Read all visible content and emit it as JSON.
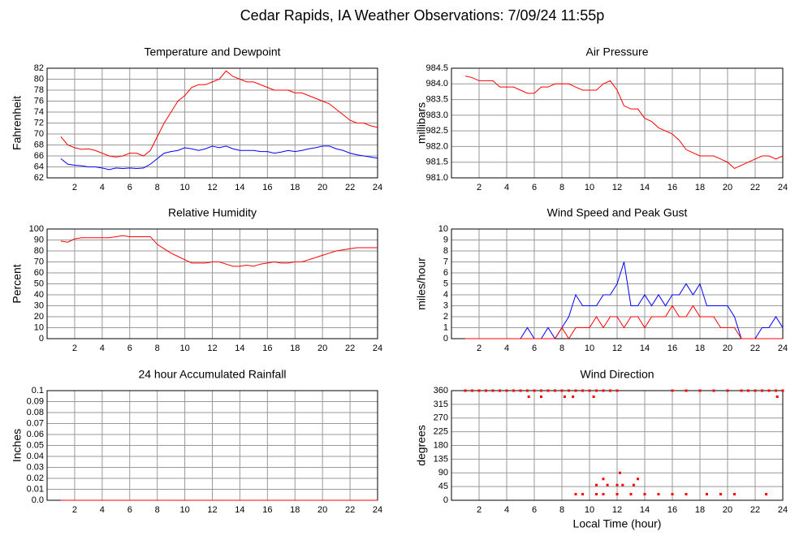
{
  "title": "Cedar Rapids, IA Weather Observations: 7/09/24 11:55p",
  "xlabel": "Local Time (hour)",
  "chart_data": [
    {
      "type": "line",
      "title": "Temperature and Dewpoint",
      "ylabel": "Fahrenheit",
      "xlim": [
        0,
        24
      ],
      "xticks": [
        2,
        4,
        6,
        8,
        10,
        12,
        14,
        16,
        18,
        20,
        22,
        24
      ],
      "ylim": [
        62,
        82
      ],
      "yticks": [
        62,
        64,
        66,
        68,
        70,
        72,
        74,
        76,
        78,
        80,
        82
      ],
      "grid": true,
      "x": [
        1,
        1.5,
        2,
        2.5,
        3,
        3.5,
        4,
        4.5,
        5,
        5.5,
        6,
        6.5,
        7,
        7.5,
        8,
        8.5,
        9,
        9.5,
        10,
        10.5,
        11,
        11.5,
        12,
        12.5,
        13,
        13.5,
        14,
        14.5,
        15,
        15.5,
        16,
        16.5,
        17,
        17.5,
        18,
        18.5,
        19,
        19.5,
        20,
        20.5,
        21,
        21.5,
        22,
        22.5,
        23,
        23.5,
        24
      ],
      "series": [
        {
          "color": "#ff0000",
          "values": [
            69.5,
            68,
            67.5,
            67.2,
            67.3,
            67,
            66.5,
            66,
            65.8,
            66,
            66.5,
            66.5,
            66,
            67,
            69.5,
            72,
            74,
            76,
            77,
            78.5,
            79,
            79,
            79.5,
            80,
            81.5,
            80.5,
            80,
            79.5,
            79.5,
            79,
            78.5,
            78,
            78,
            78,
            77.5,
            77.5,
            77,
            76.5,
            76,
            75.5,
            74.5,
            73.5,
            72.5,
            72,
            72,
            71.5,
            71.2
          ]
        },
        {
          "color": "#0000ff",
          "values": [
            65.5,
            64.5,
            64.3,
            64.2,
            64,
            64,
            63.8,
            63.5,
            63.8,
            63.7,
            63.8,
            63.7,
            63.8,
            64.5,
            65.5,
            66.5,
            66.8,
            67,
            67.5,
            67.3,
            67,
            67.3,
            67.8,
            67.5,
            67.8,
            67.3,
            67,
            67,
            67,
            66.8,
            66.8,
            66.5,
            66.7,
            67,
            66.8,
            67,
            67.3,
            67.5,
            67.8,
            67.8,
            67.3,
            67,
            66.5,
            66.2,
            66,
            65.8,
            65.6
          ]
        }
      ]
    },
    {
      "type": "line",
      "title": "Air Pressure",
      "ylabel": "millibars",
      "xlim": [
        0,
        24
      ],
      "xticks": [
        2,
        4,
        6,
        8,
        10,
        12,
        14,
        16,
        18,
        20,
        22,
        24
      ],
      "ylim": [
        981,
        984.5
      ],
      "yticks": [
        {
          "value": 981,
          "label": "981.0"
        },
        981.5,
        {
          "value": 982,
          "label": "982.0"
        },
        982.5,
        {
          "value": 983,
          "label": "983.0"
        },
        983.5,
        {
          "value": 984,
          "label": "984.0"
        },
        984.5
      ],
      "grid": true,
      "x": [
        1,
        1.5,
        2,
        2.5,
        3,
        3.5,
        4,
        4.5,
        5,
        5.5,
        6,
        6.5,
        7,
        7.5,
        8,
        8.5,
        9,
        9.5,
        10,
        10.5,
        11,
        11.5,
        12,
        12.5,
        13,
        13.5,
        14,
        14.5,
        15,
        15.5,
        16,
        16.5,
        17,
        17.5,
        18,
        18.5,
        19,
        19.5,
        20,
        20.5,
        21,
        21.5,
        22,
        22.5,
        23,
        23.5,
        24
      ],
      "series": [
        {
          "color": "#ff0000",
          "values": [
            984.25,
            984.2,
            984.1,
            984.1,
            984.1,
            983.9,
            983.9,
            983.9,
            983.8,
            983.7,
            983.7,
            983.9,
            983.9,
            984.0,
            984.0,
            984.0,
            983.9,
            983.8,
            983.8,
            983.8,
            984.0,
            984.1,
            983.8,
            983.3,
            983.2,
            983.2,
            982.9,
            982.8,
            982.6,
            982.5,
            982.4,
            982.2,
            981.9,
            981.8,
            981.7,
            981.7,
            981.7,
            981.6,
            981.5,
            981.3,
            981.4,
            981.5,
            981.6,
            981.7,
            981.7,
            981.6,
            981.7
          ]
        }
      ]
    },
    {
      "type": "line",
      "title": "Relative Humidity",
      "ylabel": "Percent",
      "xlim": [
        0,
        24
      ],
      "xticks": [
        2,
        4,
        6,
        8,
        10,
        12,
        14,
        16,
        18,
        20,
        22,
        24
      ],
      "ylim": [
        0,
        100
      ],
      "yticks": [
        0,
        10,
        20,
        30,
        40,
        50,
        60,
        70,
        80,
        90,
        100
      ],
      "grid": true,
      "x": [
        1,
        1.5,
        2,
        2.5,
        3,
        3.5,
        4,
        4.5,
        5,
        5.5,
        6,
        6.5,
        7,
        7.5,
        8,
        8.5,
        9,
        9.5,
        10,
        10.5,
        11,
        11.5,
        12,
        12.5,
        13,
        13.5,
        14,
        14.5,
        15,
        15.5,
        16,
        16.5,
        17,
        17.5,
        18,
        18.5,
        19,
        19.5,
        20,
        20.5,
        21,
        21.5,
        22,
        22.5,
        23,
        23.5,
        24
      ],
      "series": [
        {
          "color": "#ff0000",
          "values": [
            89,
            88,
            91,
            92,
            92,
            92,
            92,
            92,
            93,
            94,
            93,
            93,
            93,
            93,
            86,
            82,
            78,
            75,
            72,
            69,
            69,
            69,
            70,
            70,
            68,
            66,
            66,
            67,
            66,
            68,
            69,
            70,
            69,
            69,
            70,
            70,
            72,
            74,
            76,
            78,
            80,
            81,
            82,
            83,
            83,
            83,
            83
          ]
        }
      ]
    },
    {
      "type": "line",
      "title": "Wind Speed and Peak Gust",
      "ylabel": "miles/hour",
      "xlim": [
        0,
        24
      ],
      "xticks": [
        2,
        4,
        6,
        8,
        10,
        12,
        14,
        16,
        18,
        20,
        22,
        24
      ],
      "ylim": [
        0,
        10
      ],
      "yticks": [
        0,
        1,
        2,
        3,
        4,
        5,
        6,
        7,
        8,
        9,
        10
      ],
      "grid": true,
      "x": [
        1,
        1.5,
        2,
        2.5,
        3,
        3.5,
        4,
        4.5,
        5,
        5.5,
        6,
        6.5,
        7,
        7.5,
        8,
        8.5,
        9,
        9.5,
        10,
        10.5,
        11,
        11.5,
        12,
        12.5,
        13,
        13.5,
        14,
        14.5,
        15,
        15.5,
        16,
        16.5,
        17,
        17.5,
        18,
        18.5,
        19,
        19.5,
        20,
        20.5,
        21,
        21.5,
        22,
        22.5,
        23,
        23.5,
        24
      ],
      "series": [
        {
          "color": "#0000ff",
          "values": [
            0,
            0,
            0,
            0,
            0,
            0,
            0,
            0,
            0,
            1,
            0,
            0,
            1,
            0,
            1,
            2,
            4,
            3,
            3,
            3,
            4,
            4,
            5,
            7,
            3,
            3,
            4,
            3,
            4,
            3,
            4,
            4,
            5,
            4,
            5,
            3,
            3,
            3,
            3,
            2,
            0,
            0,
            0,
            1,
            1,
            2,
            1
          ]
        },
        {
          "color": "#ff0000",
          "values": [
            0,
            0,
            0,
            0,
            0,
            0,
            0,
            0,
            0,
            0,
            0,
            0,
            0,
            0,
            1,
            0,
            1,
            1,
            1,
            2,
            1,
            2,
            2,
            1,
            2,
            2,
            1,
            2,
            2,
            2,
            3,
            2,
            2,
            3,
            2,
            2,
            2,
            1,
            1,
            1,
            0,
            0,
            0,
            0,
            0,
            0,
            0
          ]
        }
      ]
    },
    {
      "type": "line",
      "title": "24 hour Accumulated Rainfall",
      "ylabel": "Inches",
      "xlim": [
        0,
        24
      ],
      "xticks": [
        2,
        4,
        6,
        8,
        10,
        12,
        14,
        16,
        18,
        20,
        22,
        24
      ],
      "ylim": [
        0,
        0.1
      ],
      "yticks": [
        {
          "value": 0,
          "label": "0.0"
        },
        0.01,
        0.02,
        0.03,
        0.04,
        0.05,
        0.06,
        0.07,
        0.08,
        0.09,
        0.1
      ],
      "grid": true,
      "x": [
        1,
        24
      ],
      "series": [
        {
          "color": "#ff0000",
          "values": [
            0,
            0
          ]
        }
      ]
    },
    {
      "type": "scatter",
      "title": "Wind Direction",
      "ylabel": "degrees",
      "xlim": [
        0,
        24
      ],
      "xticks": [
        2,
        4,
        6,
        8,
        10,
        12,
        14,
        16,
        18,
        20,
        22,
        24
      ],
      "ylim": [
        0,
        360
      ],
      "yticks": [
        0,
        45,
        90,
        135,
        180,
        225,
        270,
        315,
        360
      ],
      "grid": true,
      "x": [
        1,
        1.5,
        2,
        2.5,
        3,
        3.5,
        4,
        4.5,
        5,
        5.5,
        6,
        6.5,
        7,
        7.5,
        8,
        8.5,
        9,
        9.5,
        10,
        10.5,
        11,
        11.5,
        12,
        16,
        17,
        18,
        19,
        20,
        21,
        21.5,
        22,
        22.5,
        23,
        23.5,
        24,
        5.6,
        6.5,
        8.2,
        8.8,
        10.3,
        23.6,
        9,
        9.5,
        10.5,
        11,
        12,
        13,
        14,
        15,
        16,
        17,
        18.5,
        19.5,
        20.5,
        22.8,
        10.5,
        11.3,
        12,
        12.4,
        13.2,
        11,
        12.2,
        13.5
      ],
      "series": [
        {
          "color": "#ff0000",
          "values": [
            360,
            360,
            360,
            360,
            360,
            360,
            360,
            360,
            360,
            360,
            360,
            360,
            360,
            360,
            360,
            360,
            360,
            360,
            360,
            360,
            360,
            360,
            360,
            360,
            360,
            360,
            360,
            360,
            360,
            360,
            360,
            360,
            360,
            360,
            360,
            340,
            340,
            340,
            340,
            340,
            340,
            20,
            20,
            20,
            20,
            20,
            20,
            20,
            20,
            20,
            20,
            20,
            20,
            20,
            20,
            50,
            50,
            50,
            50,
            50,
            70,
            90,
            70
          ]
        }
      ]
    }
  ]
}
